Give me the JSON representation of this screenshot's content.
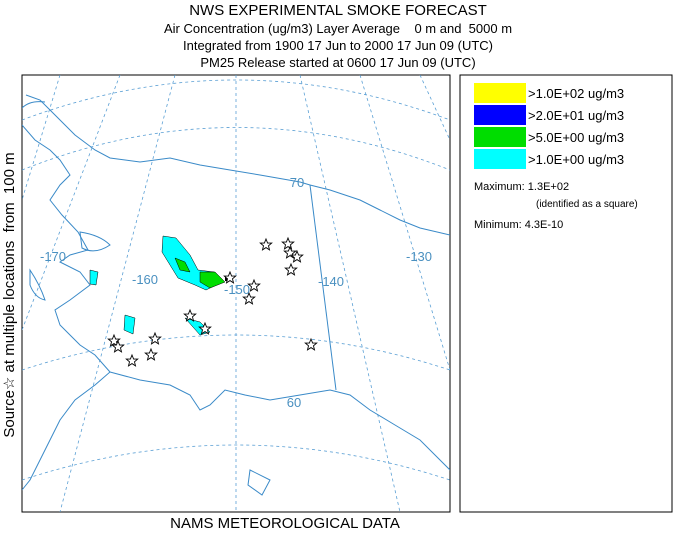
{
  "header": {
    "title": "NWS EXPERIMENTAL SMOKE FORECAST",
    "lines": [
      "Air Concentration (ug/m3) Layer Average    0 m and  5000 m",
      "Integrated from 1900 17 Jun to 2000 17 Jun 09 (UTC)",
      "PM25 Release started at 0600 17 Jun 09 (UTC)"
    ]
  },
  "side_label": "Source☆ at multiple locations  from  100 m",
  "footer": "NAMS METEOROLOGICAL DATA",
  "legend": {
    "items": [
      {
        "label": ">1.0E+02 ug/m3",
        "color": "#ffff00"
      },
      {
        "label": ">2.0E+01 ug/m3",
        "color": "#0000ff"
      },
      {
        "label": ">5.0E+00 ug/m3",
        "color": "#00dd00"
      },
      {
        "label": ">1.0E+00 ug/m3",
        "color": "#00ffff"
      }
    ],
    "maximum": "Maximum: 1.3E+02",
    "max_note": "(identified as a square)",
    "minimum": "Minimum: 4.3E-10"
  },
  "map": {
    "graticule_labels": [
      "70",
      "-170",
      "-160",
      "-150",
      "-140",
      "-130",
      "60"
    ]
  }
}
